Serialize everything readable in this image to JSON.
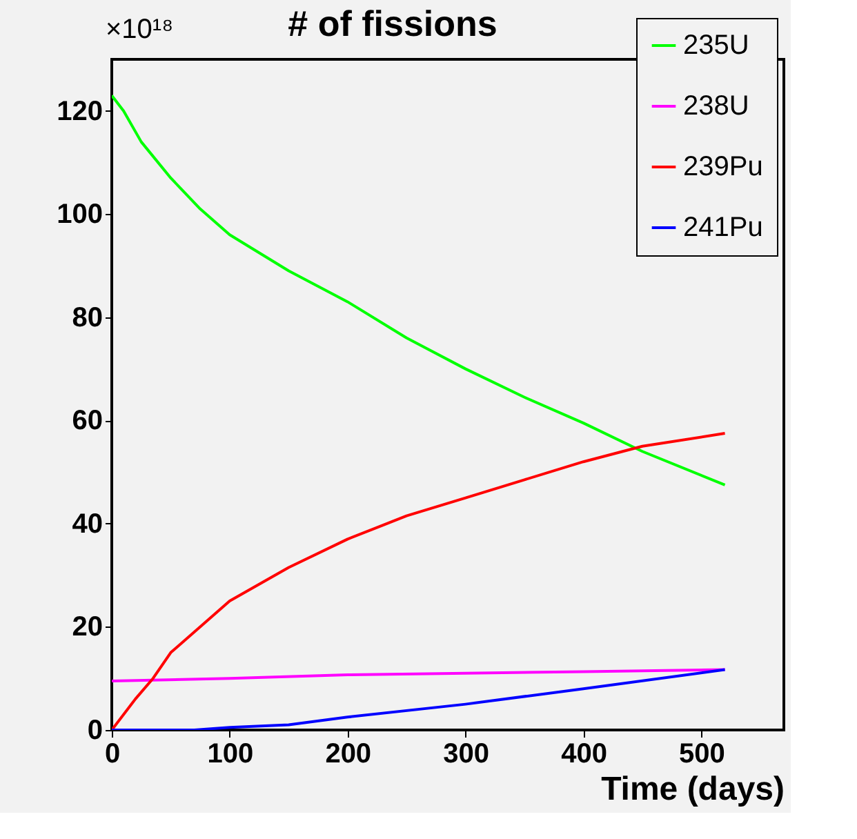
{
  "chart_data": {
    "type": "line",
    "title": "# of fissions",
    "xlabel": "Time (days)",
    "ylabel": "×10¹⁸",
    "xlim": [
      0,
      570
    ],
    "xticks": [
      0,
      100,
      200,
      300,
      400,
      500
    ],
    "ylim": [
      0,
      130
    ],
    "yticks": [
      0,
      20,
      40,
      60,
      80,
      100,
      120
    ],
    "legend": "top right",
    "grid": false,
    "marker": "none",
    "line_style": "solid",
    "series": [
      {
        "name": "235U",
        "color": "#00ff00",
        "x": [
          0,
          10,
          25,
          50,
          75,
          100,
          150,
          200,
          250,
          300,
          350,
          400,
          450,
          520
        ],
        "values": [
          123,
          120,
          114,
          107,
          101,
          96,
          89,
          83,
          76,
          70,
          64.5,
          59.5,
          54,
          47.5
        ]
      },
      {
        "name": "238U",
        "color": "#ff00ff",
        "x": [
          0,
          100,
          200,
          300,
          400,
          520
        ],
        "values": [
          9.5,
          10,
          10.7,
          11,
          11.3,
          11.7
        ]
      },
      {
        "name": "239Pu",
        "color": "#ff0000",
        "x": [
          0,
          20,
          35,
          50,
          100,
          150,
          200,
          250,
          300,
          350,
          400,
          450,
          520
        ],
        "values": [
          0,
          6,
          10,
          15,
          25,
          31.5,
          37,
          41.5,
          45,
          48.5,
          52,
          55,
          57.5
        ]
      },
      {
        "name": "241Pu",
        "color": "#0000ff",
        "x": [
          0,
          70,
          100,
          150,
          200,
          300,
          400,
          520
        ],
        "values": [
          0,
          0,
          0.5,
          1,
          2.5,
          5,
          8,
          11.7
        ]
      }
    ]
  }
}
